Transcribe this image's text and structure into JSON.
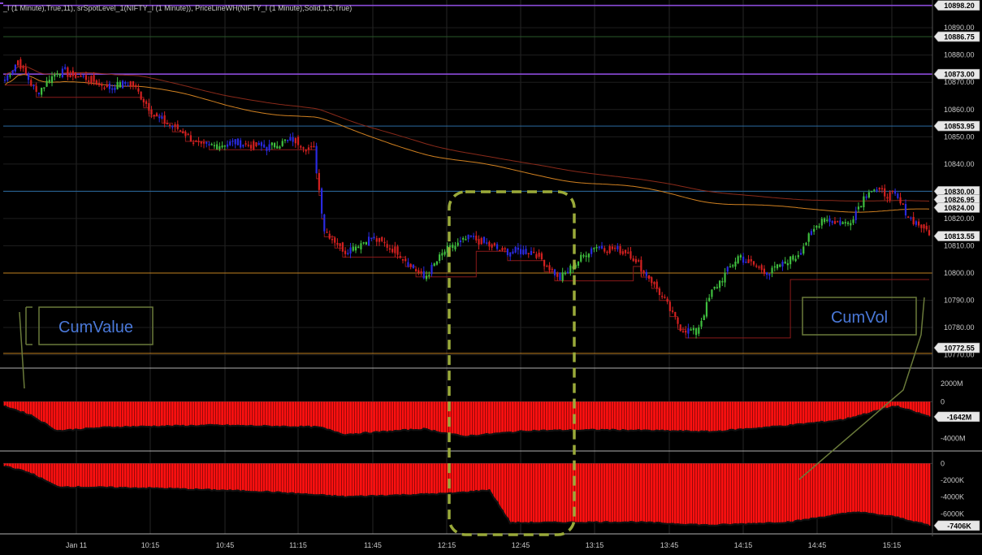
{
  "header": {
    "indicators": "_I (1 Minute),True,11), srSpotLevel_1(NIFTY_I (1 Minute)), PriceLineWH(NIFTY_I (1 Minute),Solid,1,5,True)"
  },
  "colors": {
    "bull": "#3fbf3f",
    "bear": "#d42020",
    "neutral": "#2a2ae0",
    "histogram": "#ff1010",
    "box": "#8aa04a",
    "highlight": "#9aaa3a",
    "axis_text": "#c8c8c8",
    "level_purple": "#8a4ad8",
    "level_blue": "#2a6aa0",
    "level_orange": "#c08020",
    "level_green": "#2a5a2a"
  },
  "chart_data": [
    {
      "type": "candlestick",
      "pane": "price",
      "ylim": [
        10766,
        10899
      ],
      "x_ticks": [
        "Jan 11",
        "10:15",
        "10:45",
        "11:15",
        "11:45",
        "12:15",
        "12:45",
        "13:15",
        "13:45",
        "14:15",
        "14:45",
        "15:15"
      ],
      "y_ticks": [
        10770,
        10780,
        10790,
        10800,
        10810,
        10820,
        10830,
        10840,
        10850,
        10860,
        10870,
        10880,
        10890
      ],
      "price_labels": [
        {
          "value": 10898.2,
          "text": "10898.20",
          "color": "#8a4ad8"
        },
        {
          "value": 10886.75,
          "text": "10886.75",
          "color": "#2a5a2a"
        },
        {
          "value": 10873.0,
          "text": "10873.00",
          "color": "#8a4ad8"
        },
        {
          "value": 10853.95,
          "text": "10853.95",
          "color": "#2a6aa0"
        },
        {
          "value": 10830.0,
          "text": "10830.00",
          "color": "#2a6aa0"
        },
        {
          "value": 10826.95,
          "text": "10826.95",
          "color": "#c04020"
        },
        {
          "value": 10824.0,
          "text": "10824.00",
          "color": "#c08020"
        },
        {
          "value": 10813.55,
          "text": "10813.55",
          "color": "#ffffff"
        },
        {
          "value": 10772.55,
          "text": "10772.55",
          "color": "#c04020"
        }
      ],
      "levels": [
        10898.2,
        10886.75,
        10873.0,
        10853.95,
        10830.0,
        10800.0,
        10770.5
      ],
      "path_anchors": [
        [
          0,
          10871
        ],
        [
          5,
          10878
        ],
        [
          12,
          10866
        ],
        [
          20,
          10874
        ],
        [
          30,
          10872
        ],
        [
          40,
          10868
        ],
        [
          48,
          10870
        ],
        [
          58,
          10857
        ],
        [
          68,
          10852
        ],
        [
          75,
          10846
        ],
        [
          88,
          10848
        ],
        [
          100,
          10846
        ],
        [
          110,
          10849
        ],
        [
          118,
          10845
        ],
        [
          122,
          10816
        ],
        [
          130,
          10808
        ],
        [
          140,
          10813
        ],
        [
          150,
          10808
        ],
        [
          160,
          10798
        ],
        [
          168,
          10808
        ],
        [
          178,
          10813
        ],
        [
          190,
          10808
        ],
        [
          202,
          10808
        ],
        [
          212,
          10798
        ],
        [
          225,
          10810
        ],
        [
          238,
          10808
        ],
        [
          248,
          10796
        ],
        [
          258,
          10780
        ],
        [
          264,
          10778
        ],
        [
          270,
          10793
        ],
        [
          280,
          10806
        ],
        [
          292,
          10800
        ],
        [
          302,
          10806
        ],
        [
          312,
          10820
        ],
        [
          322,
          10818
        ],
        [
          330,
          10831
        ],
        [
          340,
          10828
        ],
        [
          346,
          10820
        ],
        [
          353,
          10815
        ]
      ]
    },
    {
      "type": "bar",
      "pane": "cumvalue",
      "name": "CumValue",
      "ylim": [
        -5200,
        3400
      ],
      "y_ticks": [
        2000,
        0,
        -4000
      ],
      "y_tick_labels": [
        "2000M",
        "0",
        "-4000M"
      ],
      "current_label": "-1642M",
      "current_value": -1642,
      "path_anchors": [
        [
          0,
          -500
        ],
        [
          10,
          -1500
        ],
        [
          20,
          -3200
        ],
        [
          40,
          -2800
        ],
        [
          80,
          -2600
        ],
        [
          120,
          -2800
        ],
        [
          130,
          -3600
        ],
        [
          160,
          -3000
        ],
        [
          175,
          -3800
        ],
        [
          200,
          -3200
        ],
        [
          230,
          -3100
        ],
        [
          270,
          -3300
        ],
        [
          300,
          -2600
        ],
        [
          320,
          -2000
        ],
        [
          340,
          -500
        ],
        [
          353,
          -1642
        ]
      ]
    },
    {
      "type": "bar",
      "pane": "cumvol",
      "name": "CumVol",
      "ylim": [
        -8200,
        1000
      ],
      "y_ticks": [
        0,
        -2000,
        -4000,
        -6000
      ],
      "y_tick_labels": [
        "0",
        "-2000K",
        "-4000K",
        "-6000K"
      ],
      "current_label": "-7406K",
      "current_value": -7406,
      "path_anchors": [
        [
          0,
          -300
        ],
        [
          10,
          -1200
        ],
        [
          20,
          -2800
        ],
        [
          60,
          -3000
        ],
        [
          100,
          -3400
        ],
        [
          130,
          -4000
        ],
        [
          150,
          -3800
        ],
        [
          170,
          -3600
        ],
        [
          185,
          -3200
        ],
        [
          193,
          -7100
        ],
        [
          240,
          -7000
        ],
        [
          270,
          -7400
        ],
        [
          300,
          -7000
        ],
        [
          325,
          -5800
        ],
        [
          340,
          -6400
        ],
        [
          353,
          -7406
        ]
      ]
    }
  ],
  "annotations": {
    "cumvalue_label": "CumValue",
    "cumvol_label": "CumVol",
    "last_partial_label": "-7406K"
  }
}
